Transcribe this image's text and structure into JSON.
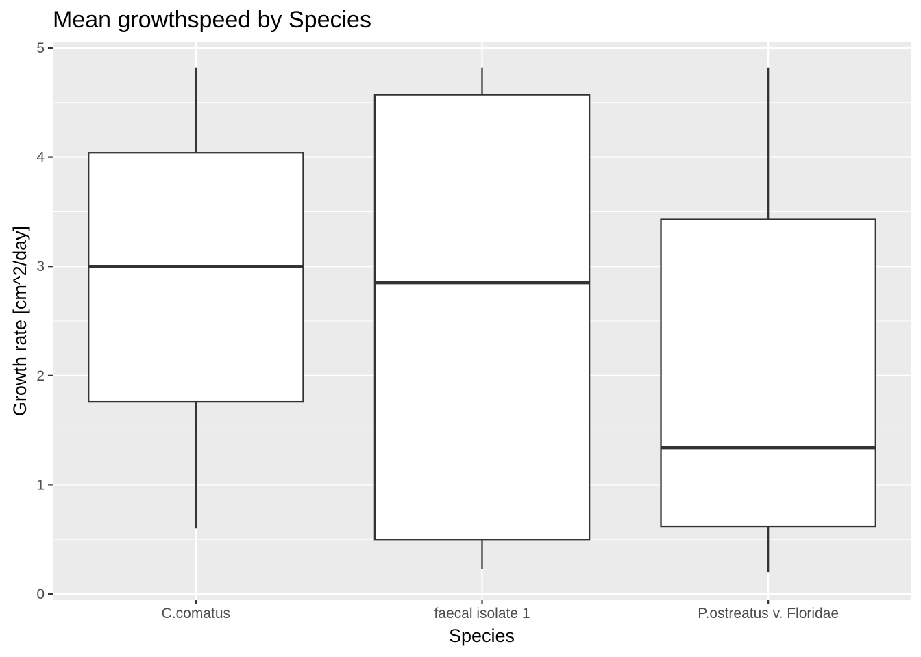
{
  "chart_data": {
    "type": "boxplot",
    "title": "Mean growthspeed by Species",
    "xlabel": "Species",
    "ylabel": "Growth rate [cm^2/day]",
    "ylim": [
      0,
      5
    ],
    "y_ticks": [
      0,
      1,
      2,
      3,
      4,
      5
    ],
    "grid": true,
    "categories": [
      "C.comatus",
      "faecal isolate 1",
      "P.ostreatus v. Floridae"
    ],
    "boxes": [
      {
        "category": "C.comatus",
        "min": 0.6,
        "q1": 1.76,
        "median": 3.0,
        "q3": 4.04,
        "max": 4.82
      },
      {
        "category": "faecal isolate 1",
        "min": 0.23,
        "q1": 0.5,
        "median": 2.85,
        "q3": 4.57,
        "max": 4.82
      },
      {
        "category": "P.ostreatus v. Floridae",
        "min": 0.2,
        "q1": 0.62,
        "median": 1.34,
        "q3": 3.43,
        "max": 4.82
      }
    ],
    "colors": {
      "panel_background": "#ebebeb",
      "grid": "#ffffff",
      "box_fill": "#ffffff",
      "box_stroke": "#333333",
      "tick": "#333333",
      "tick_label": "#4d4d4d"
    }
  }
}
